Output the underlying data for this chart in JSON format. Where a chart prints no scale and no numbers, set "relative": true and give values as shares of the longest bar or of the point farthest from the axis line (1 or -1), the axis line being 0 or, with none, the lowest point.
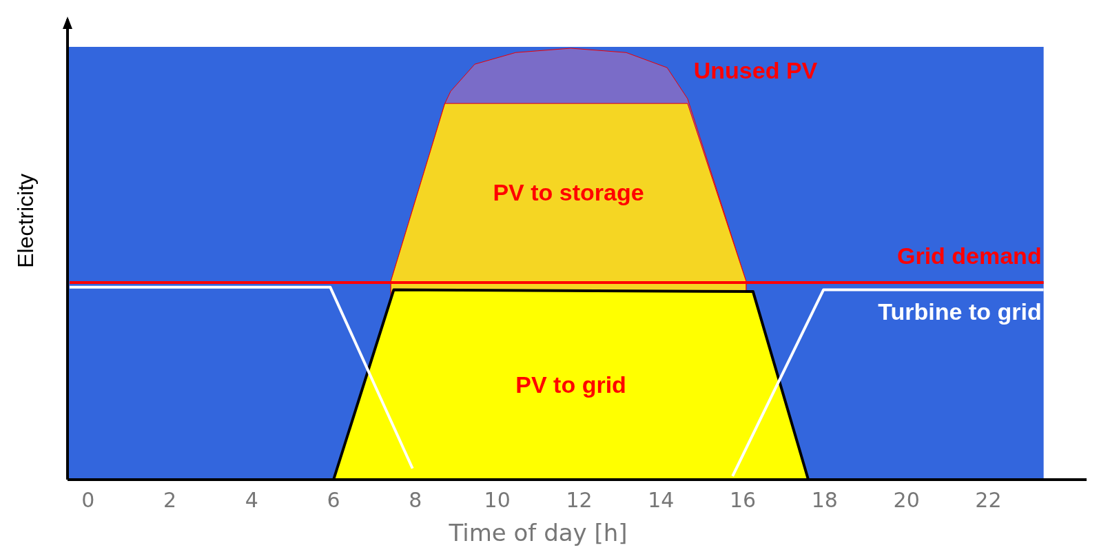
{
  "chart_data": {
    "type": "area",
    "relative": true,
    "xlabel": "Time of day [h]",
    "ylabel": "Electricity",
    "xlim": [
      -0.5,
      24.4
    ],
    "xticks": [
      0,
      2,
      4,
      6,
      8,
      10,
      12,
      14,
      16,
      18,
      20,
      22
    ],
    "grid": false,
    "series": [
      {
        "name": "Unused PV",
        "color": "#7a6cc8",
        "x": [
          7.4,
          8.72,
          8.86,
          9.45,
          10.45,
          11.8,
          13.15,
          14.15,
          14.65,
          16.08
        ],
        "values": [
          0.46,
          0.872,
          0.9,
          0.963,
          0.99,
          1.0,
          0.99,
          0.955,
          0.883,
          0.46
        ]
      },
      {
        "name": "PV to storage",
        "color": "#f5d623",
        "x": [
          7.4,
          8.72,
          14.65,
          16.08
        ],
        "values": [
          0.46,
          0.872,
          0.872,
          0.46
        ]
      },
      {
        "name": "PV to grid",
        "color": "#ffff00",
        "x": [
          6.0,
          7.47,
          16.25,
          17.6
        ],
        "values": [
          0,
          0.44,
          0.436,
          0
        ]
      },
      {
        "name": "Grid demand",
        "type": "line",
        "color": "#ff0000",
        "x": [
          -0.45,
          23.35
        ],
        "values": [
          0.457,
          0.457
        ]
      },
      {
        "name": "Turbine to grid",
        "type": "line",
        "color": "#ffffff",
        "x": [
          -0.45,
          5.92,
          7.93,
          11,
          15.75,
          17.97,
          23.35
        ],
        "values": [
          0.446,
          0.446,
          0.026,
          null,
          0.008,
          0.44,
          0.44
        ]
      }
    ]
  }
}
